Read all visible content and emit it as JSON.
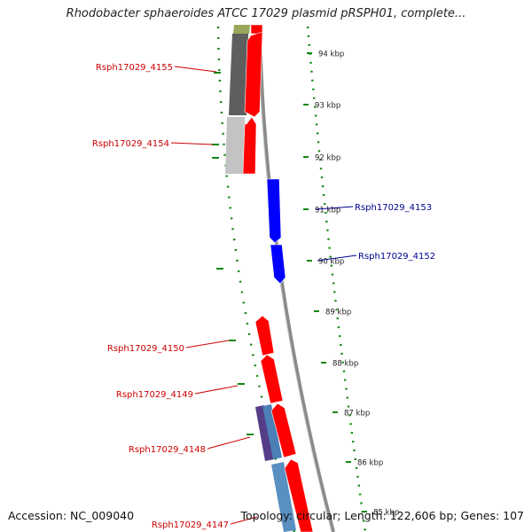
{
  "title": "Rhodobacter sphaeroides ATCC 17029 plasmid pRSPH01, complete...",
  "footer": {
    "accession": "Accession: NC_009040",
    "topology": "Topology: circular; Length: 122,606 bp; Genes: 107"
  },
  "colors": {
    "forward_gene": "#ff0000",
    "reverse_gene": "#0000ff",
    "forward_label": "#cc0000",
    "reverse_label": "#00008b",
    "tick_color": "#118811",
    "backbone": "#888888"
  },
  "ticks": [
    "94 kbp",
    "93 kbp",
    "92 kbp",
    "91 kbp",
    "90 kbp",
    "89 kbp",
    "88 kbp",
    "87 kbp",
    "86 kbp",
    "85 kbp"
  ],
  "genes": [
    {
      "label": "Rsph17029_4155",
      "strand": "forward"
    },
    {
      "label": "Rsph17029_4154",
      "strand": "forward"
    },
    {
      "label": "Rsph17029_4153",
      "strand": "reverse"
    },
    {
      "label": "Rsph17029_4152",
      "strand": "reverse"
    },
    {
      "label": "Rsph17029_4150",
      "strand": "forward"
    },
    {
      "label": "Rsph17029_4149",
      "strand": "forward"
    },
    {
      "label": "Rsph17029_4148",
      "strand": "forward"
    },
    {
      "label": "Rsph17029_4147",
      "strand": "forward"
    }
  ]
}
